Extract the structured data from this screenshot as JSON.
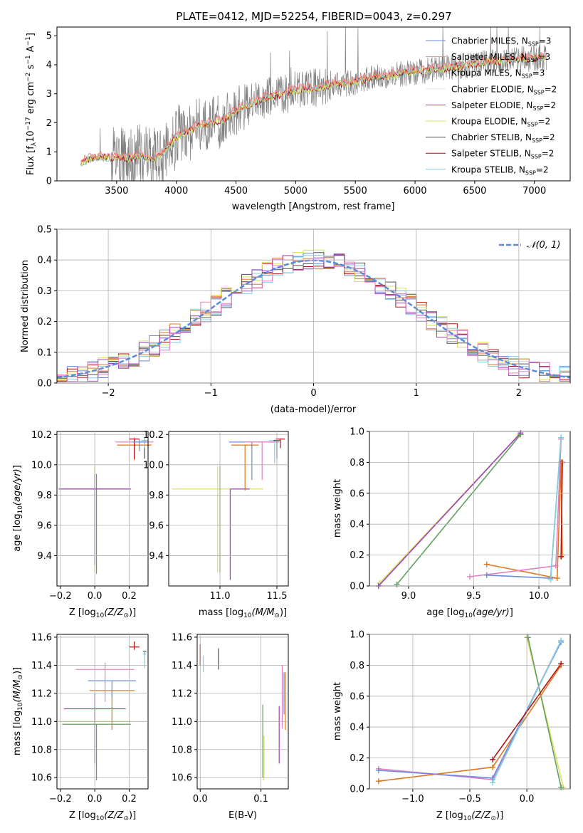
{
  "title": "PLATE=0412, MJD=52254, FIBERID=0043, z=0.297",
  "colors": {
    "chabrier_miles": "#6b8be0",
    "salpeter_miles": "#f08888",
    "kroupa_miles": "#a0c8a0",
    "chabrier_elodie": "#e8e8e8",
    "salpeter_elodie": "#a040c0",
    "kroupa_elodie": "#d8e060",
    "chabrier_stelib": "#505050",
    "salpeter_stelib": "#b01010",
    "kroupa_stelib": "#80d0e0",
    "data": "#808080",
    "normal": "#5b8ad8",
    "orange": "#e07820",
    "pink": "#e080c0",
    "green": "#60a060"
  },
  "chart_data": [
    {
      "type": "line",
      "panel": "spectrum",
      "title": "PLATE=0412, MJD=52254, FIBERID=0043, z=0.297",
      "xlabel": "wavelength [Angstrom, rest frame]",
      "ylabel": "Flux [f",
      "xlim": [
        3000,
        7300
      ],
      "ylim": [
        0,
        5.3
      ],
      "xticks": [
        "3500",
        "4000",
        "4500",
        "5000",
        "5500",
        "6000",
        "6500",
        "7000"
      ],
      "yticks": [
        "0",
        "1",
        "2",
        "3",
        "4",
        "5"
      ],
      "legend_position": "top-right",
      "legend": [
        {
          "label": "Chabrier MILES, N",
          "n": "=3",
          "color_key": "chabrier_miles"
        },
        {
          "label": "Salpeter MILES, N",
          "n": "=3",
          "color_key": "salpeter_miles"
        },
        {
          "label": "Kroupa MILES, N",
          "n": "=3",
          "color_key": "kroupa_miles"
        },
        {
          "label": "Chabrier ELODIE, N",
          "n": "=2",
          "color_key": "chabrier_elodie"
        },
        {
          "label": "Salpeter ELODIE, N",
          "n": "=2",
          "color_key": "salpeter_elodie"
        },
        {
          "label": "Kroupa ELODIE, N",
          "n": "=2",
          "color_key": "kroupa_elodie"
        },
        {
          "label": "Chabrier STELIB, N",
          "n": "=2",
          "color_key": "chabrier_stelib"
        },
        {
          "label": "Salpeter STELIB, N",
          "n": "=2",
          "color_key": "salpeter_stelib"
        },
        {
          "label": "Kroupa STELIB, N",
          "n": "=2",
          "color_key": "kroupa_stelib"
        }
      ],
      "model_continuum": {
        "x": [
          3200,
          3300,
          3400,
          3500,
          3600,
          3700,
          3800,
          3900,
          4000,
          4100,
          4200,
          4300,
          4400,
          4500,
          4600,
          4700,
          4800,
          4900,
          5000,
          5100,
          5200,
          5300,
          5400,
          5500,
          5600,
          5700,
          5800,
          5900,
          6000,
          6100,
          6200,
          6300,
          6400,
          6500,
          6600,
          6700,
          6800,
          6900,
          7000,
          7100
        ],
        "y": [
          0.6,
          0.8,
          0.8,
          0.8,
          0.75,
          0.85,
          0.7,
          1.0,
          1.5,
          1.7,
          1.9,
          2.0,
          2.1,
          2.4,
          2.6,
          2.8,
          2.9,
          3.0,
          3.1,
          3.15,
          3.2,
          3.3,
          3.35,
          3.4,
          3.5,
          3.6,
          3.6,
          3.7,
          3.75,
          3.8,
          3.85,
          3.9,
          3.95,
          4.0,
          4.1,
          4.1,
          4.15,
          4.2,
          4.2,
          4.25
        ]
      }
    },
    {
      "type": "line",
      "panel": "residual_histogram",
      "xlabel": "(data-model)/error",
      "ylabel": "Normed distribution",
      "xlim": [
        -2.5,
        2.5
      ],
      "ylim": [
        0,
        0.5
      ],
      "xticks": [
        "−2",
        "−1",
        "0",
        "1",
        "2"
      ],
      "yticks": [
        "0.0",
        "0.1",
        "0.2",
        "0.3",
        "0.4",
        "0.5"
      ],
      "legend_label": "𝒩(0, 1)",
      "legend_position": "top-right",
      "normal_curve": {
        "mean": 0,
        "sigma": 1
      }
    },
    {
      "type": "scatter",
      "panel": "age_vs_Z",
      "xlabel": "Z [log",
      "ylabel": "age  [log",
      "xlim": [
        -0.22,
        0.31
      ],
      "ylim": [
        9.2,
        10.22
      ],
      "xticks": [
        "−0.2",
        "0.0",
        "0.2"
      ],
      "yticks": [
        "9.4",
        "9.6",
        "9.8",
        "10.0",
        "10.2"
      ],
      "points": [
        {
          "x": 0.0,
          "y": 9.84,
          "xerr": 0.2,
          "yerr": [
            0.55,
            0.15
          ],
          "color_key": "kroupa_elodie"
        },
        {
          "x": 0.01,
          "y": 9.84,
          "xerr": 0.2,
          "yerr": [
            0.56,
            0.1
          ],
          "color_key": "green"
        },
        {
          "x": 0.0,
          "y": 9.84,
          "xerr": 0.21,
          "yerr": [
            0.5,
            0.1
          ],
          "color_key": "salpeter_elodie"
        },
        {
          "x": 0.23,
          "y": 10.15,
          "xerr": 0.11,
          "yerr": [
            0.12,
            0.03
          ],
          "color_key": "pink"
        },
        {
          "x": 0.23,
          "y": 10.13,
          "xerr": 0.1,
          "yerr": [
            0.1,
            0.03
          ],
          "color_key": "orange"
        },
        {
          "x": 0.23,
          "y": 10.17,
          "xerr": 0.03,
          "yerr": [
            0.13,
            0.0
          ],
          "color_key": "salpeter_stelib"
        },
        {
          "x": 0.26,
          "y": 10.15,
          "xerr": 0.04,
          "yerr": [
            0.06,
            0.02
          ],
          "color_key": "chabrier_miles"
        },
        {
          "x": 0.29,
          "y": 10.16,
          "xerr": 0.01,
          "yerr": [
            0.12,
            0.02
          ],
          "color_key": "chabrier_stelib"
        },
        {
          "x": 0.29,
          "y": 10.16,
          "xerr": 0.02,
          "yerr": [
            0.05,
            0.02
          ],
          "color_key": "kroupa_stelib"
        }
      ]
    },
    {
      "type": "scatter",
      "panel": "age_vs_mass",
      "xlabel": "mass [log",
      "xlim": [
        10.55,
        11.6
      ],
      "ylim": [
        9.2,
        10.22
      ],
      "xticks": [
        "11.0",
        "11.5"
      ],
      "yticks": [
        "9.4",
        "9.6",
        "9.8",
        "10.0",
        "10.2"
      ],
      "points": [
        {
          "x": 10.98,
          "y": 9.84,
          "xerr": 0.4,
          "yerr": [
            0.55,
            0.15
          ],
          "color_key": "kroupa_elodie"
        },
        {
          "x": 11.0,
          "y": 9.84,
          "xerr": 0.0,
          "yerr": [
            0.55,
            0.15
          ],
          "color_key": "green"
        },
        {
          "x": 11.09,
          "y": 9.84,
          "xerr": [
            0.0,
            0.17
          ],
          "yerr": [
            0.6,
            0.0
          ],
          "color_key": "salpeter_elodie"
        },
        {
          "x": 11.22,
          "y": 10.13,
          "xerr": 0.12,
          "yerr": [
            0.3,
            0.0
          ],
          "color_key": "orange"
        },
        {
          "x": 11.28,
          "y": 10.15,
          "xerr": 0.2,
          "yerr": [
            0.25,
            0.0
          ],
          "color_key": "chabrier_miles"
        },
        {
          "x": 11.37,
          "y": 10.15,
          "xerr": 0.15,
          "yerr": [
            0.25,
            0.0
          ],
          "color_key": "pink"
        },
        {
          "x": 11.48,
          "y": 10.16,
          "xerr": 0.05,
          "yerr": [
            0.15,
            0.01
          ],
          "color_key": "kroupa_stelib"
        },
        {
          "x": 11.5,
          "y": 10.16,
          "xerr": 0.03,
          "yerr": [
            0.12,
            0.01
          ],
          "color_key": "chabrier_stelib"
        },
        {
          "x": 11.53,
          "y": 10.17,
          "xerr": 0.04,
          "yerr": [
            0.06,
            0.0
          ],
          "color_key": "salpeter_stelib"
        }
      ]
    },
    {
      "type": "line",
      "panel": "weight_vs_age",
      "xlabel": "age  [log",
      "ylabel": "mass weight",
      "xlim": [
        8.7,
        10.24
      ],
      "ylim": [
        0,
        1
      ],
      "xticks": [
        "9.0",
        "9.5",
        "10.0"
      ],
      "yticks": [
        "0.0",
        "0.2",
        "0.4",
        "0.6",
        "0.8",
        "1.0"
      ],
      "series": [
        {
          "color_key": "kroupa_elodie",
          "x": [
            8.78,
            9.85
          ],
          "y": [
            0.02,
            0.98
          ]
        },
        {
          "color_key": "salpeter_elodie",
          "x": [
            8.77,
            9.86
          ],
          "y": [
            0.0,
            0.99
          ]
        },
        {
          "color_key": "green",
          "x": [
            8.91,
            9.86
          ],
          "y": [
            0.01,
            0.98
          ]
        },
        {
          "color_key": "orange",
          "x": [
            9.6,
            10.14,
            10.17,
            10.18
          ],
          "y": [
            0.14,
            0.05,
            0.8,
            0.2
          ]
        },
        {
          "color_key": "pink",
          "x": [
            9.47,
            10.13,
            10.17
          ],
          "y": [
            0.06,
            0.13,
            0.95
          ]
        },
        {
          "color_key": "chabrier_miles",
          "x": [
            9.6,
            10.09,
            10.17
          ],
          "y": [
            0.07,
            0.05,
            0.96
          ]
        },
        {
          "color_key": "kroupa_stelib",
          "x": [
            10.09,
            10.17
          ],
          "y": [
            0.04,
            0.96
          ]
        },
        {
          "color_key": "salpeter_stelib",
          "x": [
            10.17,
            10.18
          ],
          "y": [
            0.19,
            0.8
          ]
        }
      ]
    },
    {
      "type": "scatter",
      "panel": "mass_vs_Z",
      "xlabel": "Z [log",
      "ylabel": "mass [log",
      "xlim": [
        -0.22,
        0.31
      ],
      "ylim": [
        10.52,
        11.62
      ],
      "xticks": [
        "−0.2",
        "0.0",
        "0.2"
      ],
      "yticks": [
        "10.6",
        "10.8",
        "11.0",
        "11.2",
        "11.4",
        "11.6"
      ],
      "points": [
        {
          "x": 0.0,
          "y": 11.0,
          "xerr": 0.21,
          "yerr": [
            0.3,
            0.1
          ],
          "color_key": "kroupa_elodie"
        },
        {
          "x": 0.01,
          "y": 10.98,
          "xerr": 0.2,
          "yerr": [
            0.4,
            0.0
          ],
          "color_key": "green"
        },
        {
          "x": 0.0,
          "y": 11.09,
          "xerr": 0.18,
          "yerr": [
            0.39,
            0.11
          ],
          "color_key": "salpeter_elodie"
        },
        {
          "x": 0.1,
          "y": 11.22,
          "xerr": 0.13,
          "yerr": [
            0.28,
            0.0
          ],
          "color_key": "orange"
        },
        {
          "x": 0.1,
          "y": 11.29,
          "xerr": 0.14,
          "yerr": [
            0.12,
            0.0
          ],
          "color_key": "chabrier_miles"
        },
        {
          "x": 0.06,
          "y": 11.37,
          "xerr": 0.17,
          "yerr": [
            0.23,
            0.05
          ],
          "color_key": "pink"
        },
        {
          "x": 0.23,
          "y": 11.53,
          "xerr": 0.03,
          "yerr": [
            0.02,
            0.04
          ],
          "color_key": "salpeter_stelib"
        },
        {
          "x": 0.29,
          "y": 11.5,
          "xerr": 0.01,
          "yerr": [
            0.03,
            0.0
          ],
          "color_key": "chabrier_stelib"
        },
        {
          "x": 0.29,
          "y": 11.48,
          "xerr": 0.01,
          "yerr": [
            0.1,
            0.02
          ],
          "color_key": "kroupa_stelib"
        }
      ]
    },
    {
      "type": "scatter",
      "panel": "mass_vs_ebv",
      "xlabel": "E(B-V)",
      "xlim": [
        -0.005,
        0.145
      ],
      "ylim": [
        10.52,
        11.62
      ],
      "xticks": [
        "0.0",
        "0.1"
      ],
      "yticks": [
        "10.6",
        "10.8",
        "11.0",
        "11.2",
        "11.4",
        "11.6"
      ],
      "points": [
        {
          "x": 0.0,
          "y": 11.5,
          "yerr": [
            0.1,
            0.05
          ],
          "color_key": "salpeter_stelib"
        },
        {
          "x": 0.005,
          "y": 11.42,
          "yerr": [
            0.07,
            0.05
          ],
          "color_key": "kroupa_stelib"
        },
        {
          "x": 0.03,
          "y": 11.44,
          "yerr": [
            0.07,
            0.08
          ],
          "color_key": "chabrier_stelib"
        },
        {
          "x": 0.103,
          "y": 10.9,
          "yerr": [
            0.3,
            0.22
          ],
          "color_key": "green"
        },
        {
          "x": 0.105,
          "y": 10.8,
          "yerr": [
            0.22,
            0.1
          ],
          "color_key": "kroupa_elodie"
        },
        {
          "x": 0.13,
          "y": 10.9,
          "yerr": [
            0.2,
            0.21
          ],
          "color_key": "salpeter_elodie"
        },
        {
          "x": 0.135,
          "y": 11.2,
          "yerr": [
            0.25,
            0.2
          ],
          "color_key": "pink"
        },
        {
          "x": 0.138,
          "y": 11.2,
          "yerr": [
            0.15,
            0.15
          ],
          "color_key": "chabrier_miles"
        },
        {
          "x": 0.14,
          "y": 11.22,
          "yerr": [
            0.28,
            0.13
          ],
          "color_key": "orange"
        }
      ]
    },
    {
      "type": "line",
      "panel": "weight_vs_Z",
      "xlabel": "Z [log",
      "ylabel": "mass weight",
      "xlim": [
        -1.38,
        0.38
      ],
      "ylim": [
        0,
        1
      ],
      "xticks": [
        "−1.0",
        "−0.5",
        "0.0"
      ],
      "yticks": [
        "0.0",
        "0.2",
        "0.4",
        "0.6",
        "0.8",
        "1.0"
      ],
      "series": [
        {
          "color_key": "kroupa_elodie",
          "x": [
            0.0,
            0.32
          ],
          "y": [
            0.98,
            0.01
          ]
        },
        {
          "color_key": "green",
          "x": [
            0.01,
            0.3
          ],
          "y": [
            0.98,
            0.01
          ]
        },
        {
          "color_key": "orange",
          "x": [
            -1.3,
            -0.3,
            0.3
          ],
          "y": [
            0.05,
            0.14,
            0.8
          ]
        },
        {
          "color_key": "pink",
          "x": [
            -1.3,
            -0.3,
            0.3
          ],
          "y": [
            0.13,
            0.06,
            0.96
          ]
        },
        {
          "color_key": "chabrier_miles",
          "x": [
            -1.3,
            -0.3,
            0.3
          ],
          "y": [
            0.12,
            0.07,
            0.95
          ]
        },
        {
          "color_key": "kroupa_stelib",
          "x": [
            -0.3,
            0.3
          ],
          "y": [
            0.04,
            0.96
          ]
        },
        {
          "color_key": "salpeter_stelib",
          "x": [
            -0.3,
            0.3
          ],
          "y": [
            0.19,
            0.81
          ]
        }
      ]
    }
  ]
}
